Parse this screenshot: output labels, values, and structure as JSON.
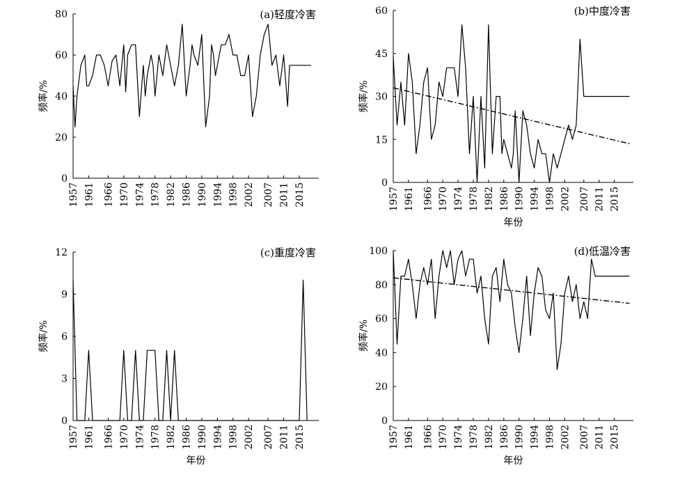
{
  "chart_data": [
    {
      "type": "line",
      "title": "(a)轻度冷害",
      "xlabel": "",
      "ylabel": "频率/%",
      "xlim": [
        1957,
        2020
      ],
      "ylim": [
        0,
        80
      ],
      "yticks": [
        0,
        20,
        40,
        60,
        80
      ],
      "xticks": [
        1957,
        1961,
        1966,
        1970,
        1974,
        1978,
        1982,
        1986,
        1990,
        1994,
        1998,
        2002,
        2007,
        2011,
        2015
      ],
      "trend": null,
      "series": [
        {
          "x": [
            1957,
            1957.5,
            1958,
            1959,
            1960,
            1960.5,
            1961,
            1962,
            1963,
            1964,
            1965,
            1966,
            1967,
            1968,
            1969,
            1970,
            1970.5,
            1971,
            1972,
            1973,
            1974,
            1975,
            1975.5,
            1976,
            1977,
            1977.5,
            1978,
            1979,
            1980,
            1981,
            1982,
            1983,
            1984,
            1985,
            1986,
            1987,
            1987.5,
            1988,
            1989,
            1990,
            1991,
            1992,
            1992.5,
            1993,
            1993.5,
            1994,
            1995,
            1996,
            1997,
            1998,
            1999,
            2000,
            2001,
            2002,
            2003,
            2004,
            2005,
            2006,
            2007,
            2008,
            2009,
            2010,
            2011,
            2012,
            2012.5,
            2013,
            2014,
            2015,
            2016,
            2017,
            2018
          ],
          "values": [
            45,
            25,
            40,
            55,
            60,
            45,
            45,
            50,
            60,
            60,
            55,
            45,
            57,
            60,
            45,
            65,
            42,
            60,
            65,
            65,
            30,
            55,
            40,
            50,
            60,
            55,
            40,
            60,
            50,
            65,
            55,
            45,
            55,
            75,
            40,
            55,
            65,
            60,
            55,
            70,
            25,
            40,
            65,
            60,
            50,
            55,
            65,
            65,
            70,
            60,
            60,
            50,
            50,
            60,
            30,
            40,
            60,
            70,
            75,
            55,
            60,
            45,
            60,
            35,
            55,
            55,
            55,
            55,
            55,
            55,
            55
          ]
        }
      ]
    },
    {
      "type": "line",
      "title": "(b)中度冷害",
      "xlabel": "年份",
      "ylabel": "频率/%",
      "xlim": [
        1957,
        2020
      ],
      "ylim": [
        0,
        60
      ],
      "yticks": [
        0,
        15,
        30,
        45,
        60
      ],
      "xticks": [
        1957,
        1961,
        1966,
        1970,
        1974,
        1978,
        1982,
        1986,
        1990,
        1994,
        1998,
        2002,
        2007,
        2011,
        2015
      ],
      "trend": {
        "start": [
          1957,
          33
        ],
        "end": [
          2019,
          13.5
        ]
      },
      "series": [
        {
          "x": [
            1957,
            1958,
            1959,
            1960,
            1961,
            1962,
            1963,
            1964,
            1965,
            1966,
            1967,
            1968,
            1969,
            1970,
            1971,
            1972,
            1973,
            1974,
            1975,
            1976,
            1977,
            1978,
            1979,
            1980,
            1981,
            1982,
            1983,
            1984,
            1985,
            1985.5,
            1986,
            1987,
            1988,
            1988.5,
            1989,
            1990,
            1991,
            1992,
            1993,
            1994,
            1995,
            1996,
            1997,
            1998,
            1999,
            2000,
            2001,
            2002,
            2003,
            2004,
            2005,
            2006,
            2007,
            2008,
            2009,
            2010,
            2011,
            2012,
            2013,
            2014,
            2015,
            2016,
            2017,
            2018,
            2019
          ],
          "values": [
            44,
            20,
            35,
            20,
            45,
            35,
            10,
            20,
            35,
            40,
            15,
            20,
            35,
            30,
            40,
            40,
            40,
            30,
            55,
            40,
            10,
            30,
            0,
            30,
            5,
            55,
            10,
            30,
            30,
            10,
            15,
            10,
            5,
            10,
            25,
            0,
            25,
            20,
            10,
            5,
            15,
            10,
            10,
            0,
            10,
            5,
            10,
            15,
            20,
            15,
            20,
            50,
            30,
            30,
            30,
            30,
            30,
            30,
            30,
            30,
            30,
            30,
            30,
            30,
            30
          ]
        }
      ]
    },
    {
      "type": "line",
      "title": "(c)重度冷害",
      "xlabel": "年份",
      "ylabel": "频率/%",
      "xlim": [
        1957,
        2020
      ],
      "ylim": [
        0,
        12
      ],
      "yticks": [
        0,
        3,
        6,
        9,
        12
      ],
      "xticks": [
        1957,
        1961,
        1966,
        1970,
        1974,
        1978,
        1982,
        1986,
        1990,
        1994,
        1998,
        2002,
        2007,
        2011,
        2015
      ],
      "trend": null,
      "series": [
        {
          "x": [
            1957,
            1958,
            1959,
            1960,
            1961,
            1962,
            1963,
            1968,
            1969,
            1970,
            1971,
            1972,
            1973,
            1974,
            1975,
            1976,
            1977,
            1978,
            1979,
            1980,
            1981,
            1982,
            1983,
            1984,
            1985,
            1986,
            1987,
            2014,
            2015,
            2016,
            2017
          ],
          "values": [
            10,
            0,
            0,
            0,
            5,
            0,
            0,
            0,
            0,
            5,
            0,
            0,
            5,
            0,
            0,
            5,
            5,
            5,
            0,
            0,
            5,
            0,
            5,
            0,
            0,
            0,
            0,
            0,
            0,
            10,
            0
          ]
        }
      ]
    },
    {
      "type": "line",
      "title": "(d)低温冷害",
      "xlabel": "年份",
      "ylabel": "频率/%",
      "xlim": [
        1957,
        2020
      ],
      "ylim": [
        0,
        100
      ],
      "yticks": [
        0,
        20,
        40,
        60,
        80,
        100
      ],
      "xticks": [
        1957,
        1961,
        1966,
        1970,
        1974,
        1978,
        1982,
        1986,
        1990,
        1994,
        1998,
        2002,
        2007,
        2011,
        2015
      ],
      "trend": {
        "start": [
          1957,
          84
        ],
        "end": [
          2019,
          69
        ]
      },
      "series": [
        {
          "x": [
            1957,
            1958,
            1959,
            1960,
            1961,
            1962,
            1963,
            1964,
            1965,
            1966,
            1967,
            1968,
            1969,
            1970,
            1971,
            1972,
            1973,
            1974,
            1975,
            1976,
            1977,
            1978,
            1979,
            1980,
            1981,
            1982,
            1983,
            1984,
            1985,
            1986,
            1987,
            1988,
            1989,
            1990,
            1991,
            1992,
            1993,
            1994,
            1995,
            1996,
            1997,
            1998,
            1999,
            2000,
            2001,
            2002,
            2003,
            2004,
            2005,
            2006,
            2007,
            2008,
            2009,
            2010,
            2011,
            2012,
            2013,
            2014,
            2015,
            2016,
            2017,
            2018,
            2019
          ],
          "values": [
            100,
            45,
            85,
            85,
            95,
            80,
            60,
            80,
            90,
            80,
            95,
            60,
            85,
            100,
            90,
            100,
            80,
            95,
            100,
            85,
            95,
            95,
            75,
            85,
            60,
            45,
            85,
            90,
            70,
            95,
            80,
            75,
            55,
            40,
            60,
            85,
            50,
            75,
            90,
            85,
            65,
            60,
            75,
            30,
            45,
            75,
            85,
            70,
            80,
            60,
            70,
            60,
            95,
            85,
            85,
            85,
            85,
            85,
            85,
            85,
            85,
            85,
            85
          ]
        }
      ]
    }
  ]
}
